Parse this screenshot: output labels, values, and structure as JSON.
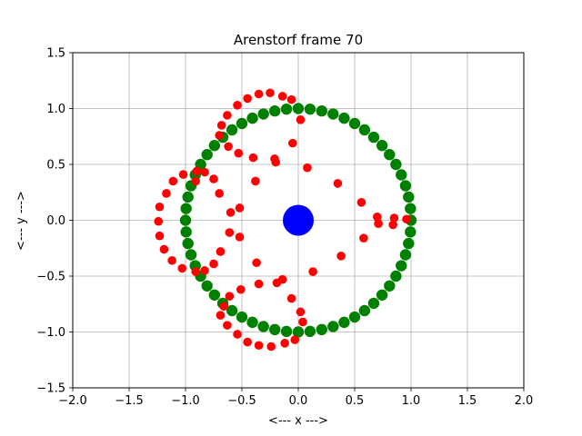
{
  "chart_data": {
    "type": "scatter",
    "title": "Arenstorf frame 70",
    "xlabel": "<---  x  --->",
    "ylabel": "<---  y  --->",
    "xlim": [
      -2.0,
      2.0
    ],
    "ylim": [
      -1.5,
      1.5
    ],
    "xticks": [
      -2.0,
      -1.5,
      -1.0,
      -0.5,
      0.0,
      0.5,
      1.0,
      1.5,
      2.0
    ],
    "yticks": [
      -1.5,
      -1.0,
      -0.5,
      0.0,
      0.5,
      1.0,
      1.5
    ],
    "xtick_labels": [
      "−2.0",
      "−1.5",
      "−1.0",
      "−0.5",
      "0.0",
      "0.5",
      "1.0",
      "1.5",
      "2.0"
    ],
    "ytick_labels": [
      "−1.5",
      "−1.0",
      "−0.5",
      "0.0",
      "0.5",
      "1.0",
      "1.5"
    ],
    "grid": true,
    "series": [
      {
        "color": "#008000",
        "marker": "circle",
        "size": "large",
        "shape": "circle",
        "center": [
          0,
          0
        ],
        "radius": 1.0,
        "count": 60
      },
      {
        "color": "#ff0000",
        "marker": "circle",
        "size": "medium",
        "points": [
          [
            -0.25,
            1.14
          ],
          [
            -0.35,
            1.13
          ],
          [
            -0.14,
            1.11
          ],
          [
            -0.45,
            1.09
          ],
          [
            -0.06,
            1.08
          ],
          [
            -0.54,
            1.03
          ],
          [
            -0.63,
            0.94
          ],
          [
            -0.68,
            0.85
          ],
          [
            -0.7,
            0.76
          ],
          [
            -0.62,
            0.66
          ],
          [
            0.02,
            0.9
          ],
          [
            -0.05,
            0.69
          ],
          [
            -0.53,
            0.6
          ],
          [
            -0.4,
            0.56
          ],
          [
            -0.21,
            0.55
          ],
          [
            -0.2,
            0.52
          ],
          [
            0.08,
            0.47
          ],
          [
            -0.9,
            0.44
          ],
          [
            -0.83,
            0.43
          ],
          [
            -1.02,
            0.41
          ],
          [
            -0.75,
            0.37
          ],
          [
            -1.11,
            0.35
          ],
          [
            -0.38,
            0.35
          ],
          [
            -0.91,
            0.35
          ],
          [
            0.35,
            0.33
          ],
          [
            -1.17,
            0.24
          ],
          [
            -0.7,
            0.24
          ],
          [
            0.56,
            0.16
          ],
          [
            -1.23,
            0.12
          ],
          [
            -0.52,
            0.11
          ],
          [
            -0.6,
            0.07
          ],
          [
            0.7,
            0.03
          ],
          [
            0.85,
            0.02
          ],
          [
            0.96,
            0.01
          ],
          [
            -1.24,
            -0.01
          ],
          [
            0.71,
            -0.03
          ],
          [
            0.84,
            -0.04
          ],
          [
            -0.61,
            -0.11
          ],
          [
            -1.23,
            -0.14
          ],
          [
            -0.52,
            -0.15
          ],
          [
            0.58,
            -0.16
          ],
          [
            -1.19,
            -0.26
          ],
          [
            -0.69,
            -0.28
          ],
          [
            0.38,
            -0.32
          ],
          [
            -1.12,
            -0.36
          ],
          [
            -0.37,
            -0.38
          ],
          [
            -0.75,
            -0.39
          ],
          [
            -1.03,
            -0.43
          ],
          [
            -0.91,
            -0.46
          ],
          [
            -0.83,
            -0.45
          ],
          [
            0.13,
            -0.46
          ],
          [
            -0.14,
            -0.53
          ],
          [
            -0.19,
            -0.56
          ],
          [
            -0.35,
            -0.57
          ],
          [
            -0.51,
            -0.62
          ],
          [
            -0.61,
            -0.68
          ],
          [
            -0.06,
            -0.7
          ],
          [
            -0.66,
            -0.77
          ],
          [
            -0.69,
            -0.85
          ],
          [
            0.02,
            -0.82
          ],
          [
            -0.63,
            -0.94
          ],
          [
            0.04,
            -0.91
          ],
          [
            -0.54,
            -1.02
          ],
          [
            -0.45,
            -1.09
          ],
          [
            -0.03,
            -1.07
          ],
          [
            -0.35,
            -1.12
          ],
          [
            -0.24,
            -1.13
          ],
          [
            -0.12,
            -1.1
          ]
        ]
      },
      {
        "color": "#0000ff",
        "marker": "circle",
        "size": "xlarge",
        "points": [
          [
            0.0,
            0.0
          ]
        ]
      }
    ]
  }
}
